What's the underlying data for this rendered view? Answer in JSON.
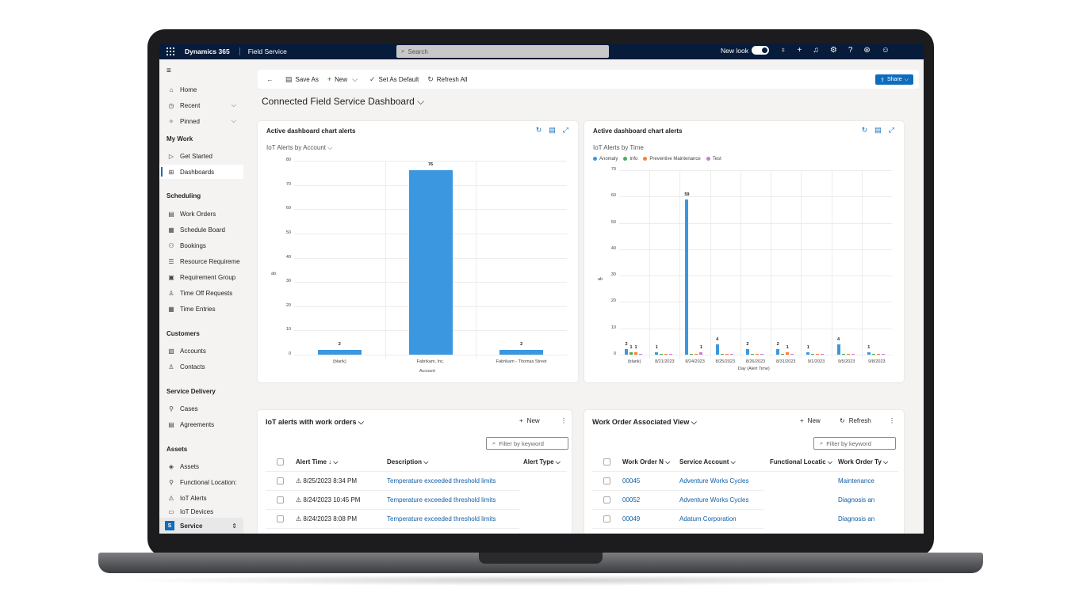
{
  "topbar": {
    "brand": "Dynamics 365",
    "app": "Field Service",
    "search_placeholder": "Search",
    "new_look": "New look",
    "icons": [
      "lightbulb-icon",
      "plus-icon",
      "bell-icon",
      "gear-icon",
      "help-icon",
      "copilot-icon",
      "smiley-icon"
    ]
  },
  "sidebar": {
    "items": [
      {
        "label": "Home",
        "icon": "home-icon",
        "glyph": "⌂"
      },
      {
        "label": "Recent",
        "icon": "clock-icon",
        "glyph": "◷"
      },
      {
        "label": "Pinned",
        "icon": "pin-icon",
        "glyph": "✧"
      }
    ],
    "my_work": "My Work",
    "my_work_items": [
      {
        "label": "Get Started",
        "icon": "play-icon",
        "glyph": "▷"
      },
      {
        "label": "Dashboards",
        "icon": "dashboard-icon",
        "glyph": "⊞"
      }
    ],
    "scheduling": "Scheduling",
    "scheduling_items": [
      {
        "label": "Work Orders",
        "icon": "clipboard-icon",
        "glyph": "▤"
      },
      {
        "label": "Schedule Board",
        "icon": "calendar-icon",
        "glyph": "▦"
      },
      {
        "label": "Bookings",
        "icon": "people-icon",
        "glyph": "⚇"
      },
      {
        "label": "Resource Requireme",
        "icon": "list-icon",
        "glyph": "☰"
      },
      {
        "label": "Requirement Group",
        "icon": "group-icon",
        "glyph": "▣"
      },
      {
        "label": "Time Off Requests",
        "icon": "person-icon",
        "glyph": "♙"
      },
      {
        "label": "Time Entries",
        "icon": "table-icon",
        "glyph": "▦"
      }
    ],
    "customers": "Customers",
    "customer_items": [
      {
        "label": "Accounts",
        "icon": "building-icon",
        "glyph": "▧"
      },
      {
        "label": "Contacts",
        "icon": "contact-icon",
        "glyph": "♙"
      }
    ],
    "service_delivery": "Service Delivery",
    "service_items": [
      {
        "label": "Cases",
        "icon": "wrench-icon",
        "glyph": "⚲"
      },
      {
        "label": "Agreements",
        "icon": "document-icon",
        "glyph": "▤"
      }
    ],
    "assets": "Assets",
    "asset_items": [
      {
        "label": "Assets",
        "icon": "cube-icon",
        "glyph": "◈"
      },
      {
        "label": "Functional Location:",
        "icon": "location-icon",
        "glyph": "⚲"
      },
      {
        "label": "IoT Alerts",
        "icon": "alert-icon",
        "glyph": "⚠"
      },
      {
        "label": "IoT Devices",
        "icon": "device-icon",
        "glyph": "▭"
      }
    ],
    "area_letter": "S",
    "area": "Service"
  },
  "commandbar": {
    "save_as": "Save As",
    "new": "New",
    "set_default": "Set As Default",
    "refresh_all": "Refresh All",
    "share": "Share"
  },
  "dashboard_title": "Connected Field Service Dashboard",
  "chart1": {
    "title": "Active dashboard chart alerts",
    "subtitle": "IoT Alerts by Account",
    "ylabel": "ab",
    "xlabel": "Account"
  },
  "chart2": {
    "title": "Active dashboard chart alerts",
    "subtitle": "IoT Alerts by Time",
    "ylabel": "ab",
    "xlabel": "Day (Alert Time)",
    "legend": [
      {
        "name": "Anomaly",
        "color": "#3b97e0"
      },
      {
        "name": "Info",
        "color": "#4caf50"
      },
      {
        "name": "Preventive Maintenance",
        "color": "#ff7b39"
      },
      {
        "name": "Test",
        "color": "#c87bd8"
      }
    ]
  },
  "chart_data": [
    {
      "type": "bar",
      "title": "IoT Alerts by Account",
      "categories": [
        "(blank)",
        "Fabrikam, Inc.",
        "Fabrikam - Thomas Street"
      ],
      "values": [
        2,
        76,
        2
      ],
      "xlabel": "Account",
      "ylabel": "",
      "ylim": [
        0,
        80
      ],
      "yticks": [
        0,
        10,
        20,
        30,
        40,
        50,
        60,
        70,
        80
      ],
      "grid": true
    },
    {
      "type": "bar",
      "title": "IoT Alerts by Time",
      "categories": [
        "(blank)",
        "8/21/2023",
        "8/24/2023",
        "8/25/2023",
        "8/26/2023",
        "8/31/2023",
        "9/1/2023",
        "9/5/2023",
        "9/8/2023"
      ],
      "series": [
        {
          "name": "Anomaly",
          "values": [
            2,
            1,
            59,
            4,
            2,
            2,
            1,
            4,
            1
          ]
        },
        {
          "name": "Info",
          "values": [
            1,
            0,
            0,
            0,
            0,
            0,
            0,
            0,
            0
          ]
        },
        {
          "name": "Preventive Maintenance",
          "values": [
            1,
            0,
            0,
            0,
            0,
            1,
            0,
            0,
            0
          ]
        },
        {
          "name": "Test",
          "values": [
            0,
            0,
            1,
            0,
            0,
            0,
            0,
            0,
            0
          ]
        }
      ],
      "xlabel": "Day (Alert Time)",
      "ylabel": "",
      "ylim": [
        0,
        70
      ],
      "yticks": [
        0,
        10,
        20,
        30,
        40,
        50,
        60,
        70
      ],
      "legend_position": "top-left",
      "grid": true
    }
  ],
  "grid1": {
    "title": "IoT alerts with work orders",
    "new": "New",
    "filter_placeholder": "Filter by keyword",
    "columns": [
      "Alert Time ↓",
      "Description",
      "Alert Type"
    ],
    "rows": [
      {
        "time": "8/25/2023 8:34 PM",
        "description": "Temperature exceeded threshold limits",
        "type": ""
      },
      {
        "time": "8/24/2023 10:45 PM",
        "description": "Temperature exceeded threshold limits",
        "type": ""
      },
      {
        "time": "8/24/2023 8:08 PM",
        "description": "Temperature exceeded threshold limits",
        "type": ""
      }
    ]
  },
  "grid2": {
    "title": "Work Order Associated View",
    "new": "New",
    "refresh": "Refresh",
    "filter_placeholder": "Filter by keyword",
    "columns": [
      "Work Order N",
      "Service Account",
      "Functional Locatic",
      "Work Order Ty"
    ],
    "rows": [
      {
        "number": "00045",
        "account": "Adventure Works Cycles",
        "location": "",
        "type": "Maintenance"
      },
      {
        "number": "00052",
        "account": "Adventure Works Cycles",
        "location": "",
        "type": "Diagnosis an"
      },
      {
        "number": "00049",
        "account": "Adatum Corporation",
        "location": "",
        "type": "Diagnosis an"
      }
    ]
  }
}
